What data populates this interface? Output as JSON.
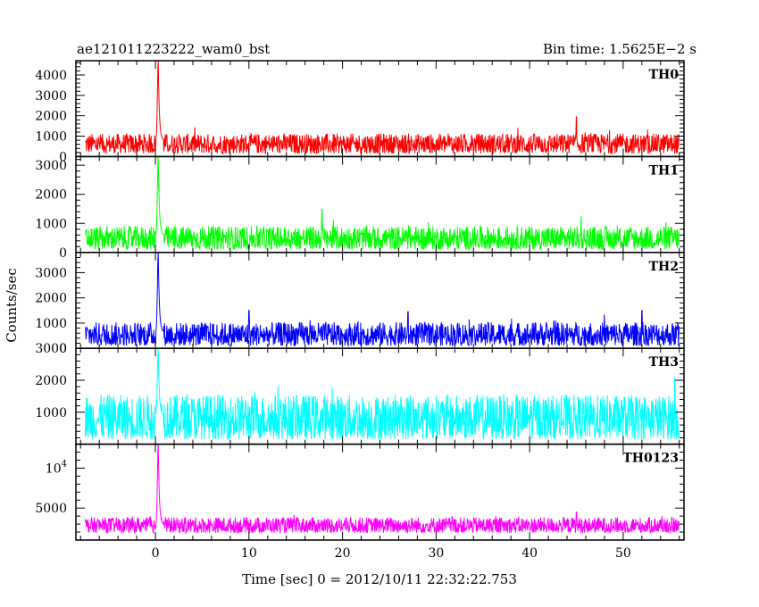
{
  "header": {
    "left_title": "ae121011223222_wam0_bst",
    "right_title": "Bin time: 1.5625E−2 s"
  },
  "chart_data": {
    "type": "line",
    "title": "ae121011223222_wam0_bst",
    "subtitle": "Bin time: 1.5625E−2 s",
    "xlabel": "Time [sec] 0 = 2012/10/11 22:32:22.753",
    "ylabel": "Counts/sec",
    "xlim": [
      -8.5,
      56.5
    ],
    "x_ticks": [
      0,
      10,
      20,
      30,
      40,
      50
    ],
    "x_tick_labels": [
      "0",
      "10",
      "20",
      "30",
      "40",
      "50"
    ],
    "data_x_range": [
      -7.5,
      56.0
    ],
    "bin_time": 0.015625,
    "panels": [
      {
        "name": "TH0",
        "color": "#ff0000",
        "ylim": [
          0,
          4700
        ],
        "y_ticks": [
          0,
          1000,
          2000,
          3000,
          4000
        ],
        "y_tick_labels": [
          "0",
          "1000",
          "2000",
          "3000",
          "4000"
        ],
        "baseline_mean": 800,
        "noise_low": 150,
        "noise_high": 1300,
        "peak": {
          "x": 0.3,
          "y": 4700
        },
        "features": [
          {
            "x": 45.0,
            "y": 1950
          }
        ]
      },
      {
        "name": "TH1",
        "color": "#00ff00",
        "ylim": [
          0,
          3300
        ],
        "y_ticks": [
          0,
          1000,
          2000,
          3000
        ],
        "y_tick_labels": [
          "0",
          "1000",
          "2000",
          "3000"
        ],
        "baseline_mean": 600,
        "noise_low": 100,
        "noise_high": 1050,
        "peak": {
          "x": 0.3,
          "y": 3300
        },
        "features": [
          {
            "x": 17.8,
            "y": 1480
          },
          {
            "x": 45.5,
            "y": 1250
          }
        ]
      },
      {
        "name": "TH2",
        "color": "#0000ff",
        "ylim": [
          0,
          3800
        ],
        "y_ticks": [
          0,
          1000,
          2000,
          3000
        ],
        "y_tick_labels": [
          "0",
          "1000",
          "2000",
          "3000"
        ],
        "baseline_mean": 650,
        "noise_low": 100,
        "noise_high": 1200,
        "peak": {
          "x": 0.3,
          "y": 3800
        },
        "features": [
          {
            "x": 10.0,
            "y": 1500
          },
          {
            "x": 27.0,
            "y": 1450
          },
          {
            "x": 52.0,
            "y": 1500
          }
        ]
      },
      {
        "name": "TH3",
        "color": "#00ffff",
        "ylim": [
          0,
          3000
        ],
        "y_ticks": [
          1000,
          2000,
          3000
        ],
        "y_tick_labels": [
          "1000",
          "2000",
          "3000"
        ],
        "baseline_mean": 900,
        "noise_low": 150,
        "noise_high": 1800,
        "peak": {
          "x": 0.3,
          "y": 3000
        },
        "features": [
          {
            "x": 55.5,
            "y": 2100
          }
        ]
      },
      {
        "name": "TH0123",
        "color": "#ff00ff",
        "ylim": [
          1000,
          13000
        ],
        "y_ticks": [
          5000,
          10000
        ],
        "y_tick_labels": [
          "5000",
          "10000"
        ],
        "y_tick_label_overrides": {
          "10000": {
            "base": "10",
            "exp": "4"
          }
        },
        "baseline_mean": 2900,
        "noise_low": 1900,
        "noise_high": 4200,
        "peak": {
          "x": 0.3,
          "y": 13000
        },
        "features": [
          {
            "x": 45.0,
            "y": 4500
          }
        ]
      }
    ]
  }
}
